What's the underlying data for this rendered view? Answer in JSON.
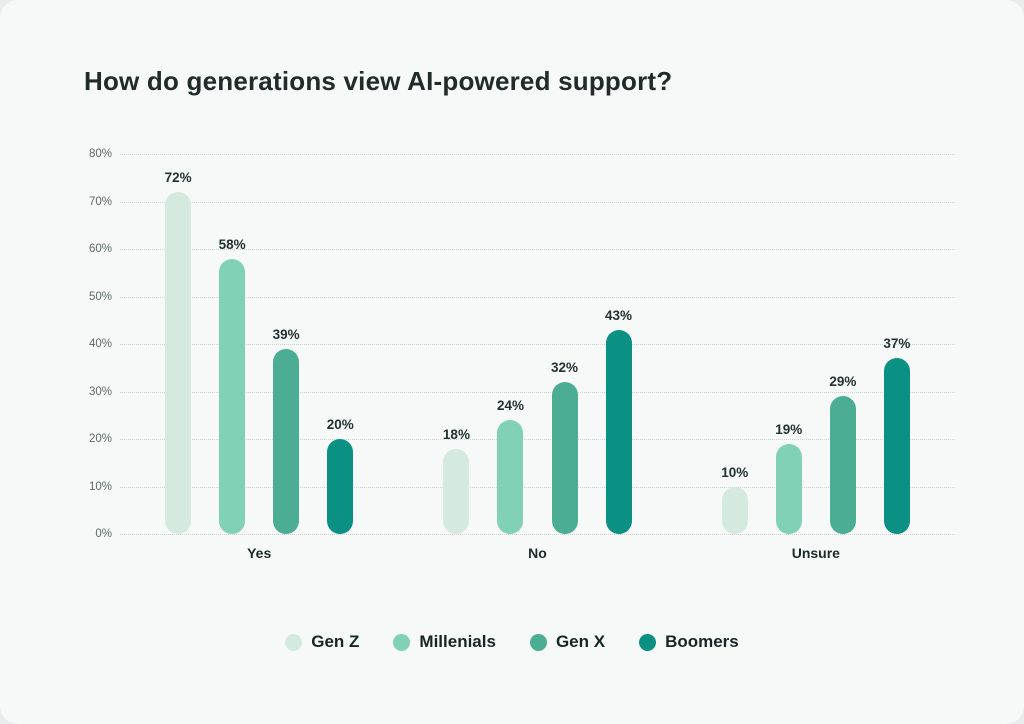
{
  "page": {
    "background_color": "#f7f9f9"
  },
  "chart_data": {
    "type": "bar",
    "title": "How do generations view AI-powered support?",
    "categories": [
      "Yes",
      "No",
      "Unsure"
    ],
    "series": [
      {
        "name": "Gen Z",
        "color": "#d5eadf",
        "values": [
          72,
          18,
          10
        ]
      },
      {
        "name": "Millenials",
        "color": "#81d1b7",
        "values": [
          58,
          24,
          19
        ]
      },
      {
        "name": "Gen X",
        "color": "#4bae94",
        "values": [
          39,
          32,
          29
        ]
      },
      {
        "name": "Boomers",
        "color": "#0b9183",
        "values": [
          20,
          43,
          37
        ]
      }
    ],
    "ylim": [
      0,
      80
    ],
    "ytick_step": 10,
    "ytick_suffix": "%",
    "value_label_suffix": "%",
    "grid": "horizontal-dotted",
    "legend_position": "bottom",
    "xlabel": "",
    "ylabel": ""
  }
}
